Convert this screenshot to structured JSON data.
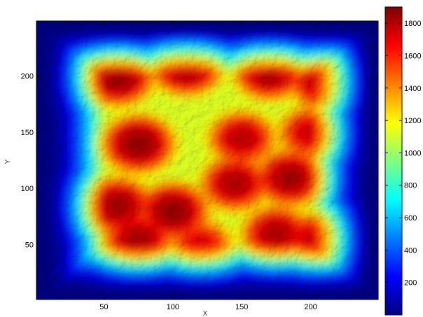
{
  "chart_data": {
    "type": "heatmap",
    "title": "",
    "xlabel": "X",
    "ylabel": "Y",
    "xlim": [
      1,
      249
    ],
    "ylim": [
      1,
      249
    ],
    "x_ticks": [
      50,
      100,
      150,
      200
    ],
    "y_ticks": [
      50,
      100,
      150,
      200
    ],
    "colorbar": {
      "colormap": "jet",
      "range": [
        0,
        1900
      ],
      "ticks": [
        200,
        400,
        600,
        800,
        1000,
        1200,
        1400,
        1600,
        1800
      ]
    },
    "surface_description": "shaded terrain elevation map; low (~0) at borders rising to peaks ~1800-1900 in interior",
    "peaks": [
      {
        "x": 60,
        "y": 200,
        "z": 1850
      },
      {
        "x": 110,
        "y": 210,
        "z": 1880
      },
      {
        "x": 170,
        "y": 205,
        "z": 1820
      },
      {
        "x": 210,
        "y": 195,
        "z": 1780
      },
      {
        "x": 75,
        "y": 140,
        "z": 1850
      },
      {
        "x": 150,
        "y": 145,
        "z": 1700
      },
      {
        "x": 200,
        "y": 150,
        "z": 1650
      },
      {
        "x": 60,
        "y": 85,
        "z": 1800
      },
      {
        "x": 100,
        "y": 80,
        "z": 1850
      },
      {
        "x": 145,
        "y": 105,
        "z": 1750
      },
      {
        "x": 185,
        "y": 110,
        "z": 1800
      },
      {
        "x": 205,
        "y": 55,
        "z": 1700
      },
      {
        "x": 175,
        "y": 60,
        "z": 1750
      },
      {
        "x": 120,
        "y": 50,
        "z": 1600
      },
      {
        "x": 75,
        "y": 55,
        "z": 1780
      }
    ]
  }
}
